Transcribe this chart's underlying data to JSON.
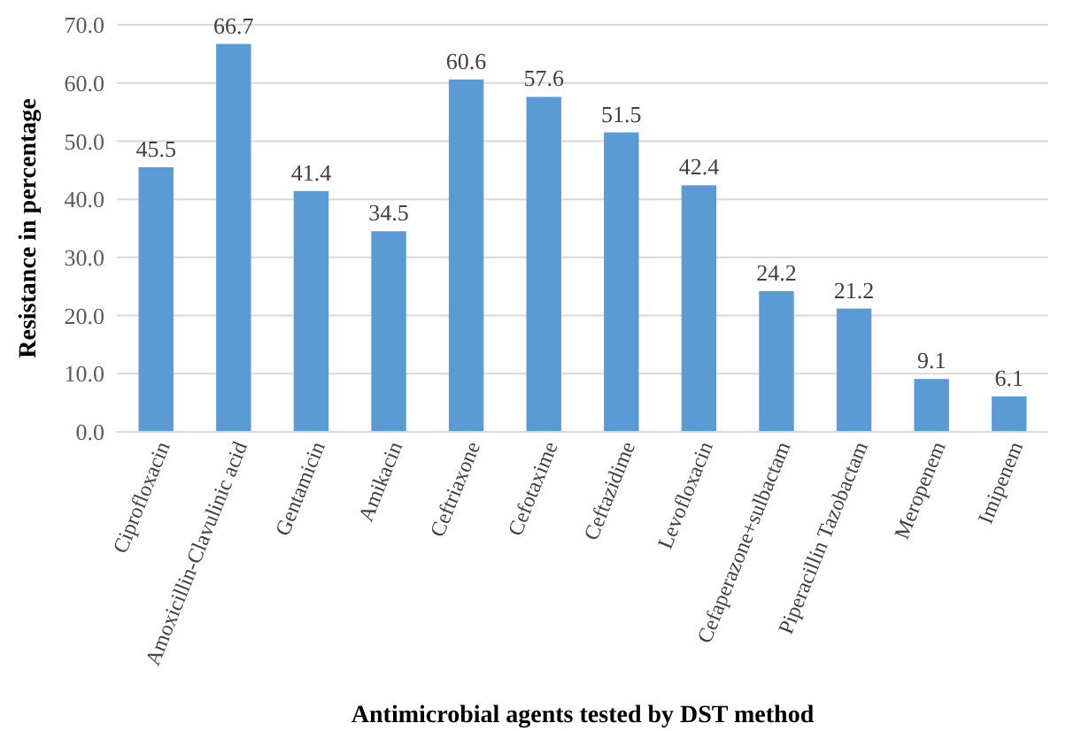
{
  "chart_data": {
    "type": "bar",
    "xlabel": "Antimicrobial agents tested by DST method",
    "ylabel": "Resistance in percentage",
    "categories": [
      "Ciprofloxacin",
      "Amoxicillin-Clavulinic acid",
      "Gentamicin",
      "Amikacin",
      "Ceftriaxone",
      "Cefotaxime",
      "Ceftazidime",
      "Levofloxacin",
      "Cefaperazone+sulbactam",
      "Piperacillin Tazobactam",
      "Meropenem",
      "Imipenem"
    ],
    "values": [
      45.5,
      66.7,
      41.4,
      34.5,
      60.6,
      57.6,
      51.5,
      42.4,
      24.2,
      21.2,
      9.1,
      6.1
    ],
    "color": "#5b9bd5",
    "ylim": [
      0,
      70
    ],
    "yticks": [
      {
        "value": 0,
        "label": "0.0"
      },
      {
        "value": 10,
        "label": "10.0"
      },
      {
        "value": 20,
        "label": "20.0"
      },
      {
        "value": 30,
        "label": "30.0"
      },
      {
        "value": 40,
        "label": "40.0"
      },
      {
        "value": 50,
        "label": "50.0"
      },
      {
        "value": 60,
        "label": "60.0"
      },
      {
        "value": 70,
        "label": "70.0"
      }
    ],
    "grid": true,
    "data_labels": true
  }
}
